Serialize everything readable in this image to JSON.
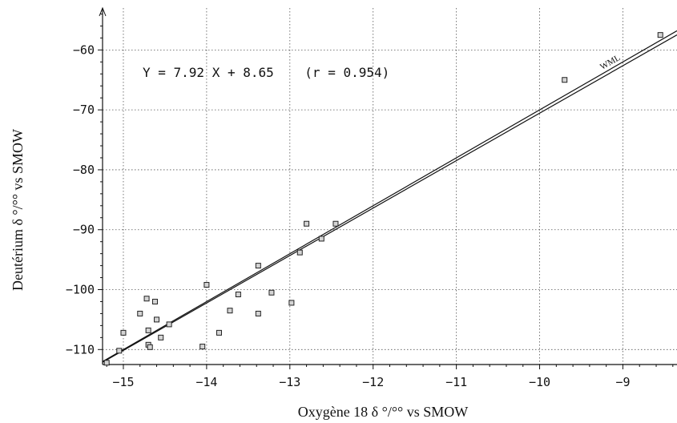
{
  "chart_data": {
    "type": "scatter",
    "xlabel": "Oxygène 18 δ °/°° vs SMOW",
    "ylabel": "Deutérium δ °/°° vs SMOW",
    "xlim": [
      -15.25,
      -8.35
    ],
    "ylim": [
      -112.5,
      -53
    ],
    "xticks": [
      -15,
      -14,
      -13,
      -12,
      -11,
      -10,
      -9
    ],
    "yticks": [
      -110,
      -100,
      -90,
      -80,
      -70,
      -60
    ],
    "xtick_labels": [
      "−15",
      "−14",
      "−13",
      "−12",
      "−11",
      "−10",
      "−9"
    ],
    "ytick_labels": [
      "−110",
      "−100",
      "−90",
      "−80",
      "−70",
      "−60"
    ],
    "grid": true,
    "annotation": "Y = 7.92 X + 8.65    (r = 0.954)",
    "lines": [
      {
        "name": "WML",
        "slope": 8,
        "intercept": 10,
        "label": "WML"
      },
      {
        "slope": 7.92,
        "intercept": 8.65
      }
    ],
    "series": [
      {
        "points": [
          [
            -15.2,
            -112.2
          ],
          [
            -15.05,
            -110.2
          ],
          [
            -15.0,
            -107.2
          ],
          [
            -14.8,
            -104.0
          ],
          [
            -14.72,
            -101.5
          ],
          [
            -14.7,
            -106.8
          ],
          [
            -14.7,
            -109.2
          ],
          [
            -14.68,
            -109.6
          ],
          [
            -14.62,
            -102.0
          ],
          [
            -14.6,
            -105.0
          ],
          [
            -14.55,
            -108.0
          ],
          [
            -14.45,
            -105.8
          ],
          [
            -14.05,
            -109.5
          ],
          [
            -14.0,
            -99.2
          ],
          [
            -13.85,
            -107.2
          ],
          [
            -13.72,
            -103.5
          ],
          [
            -13.62,
            -100.8
          ],
          [
            -13.38,
            -96.0
          ],
          [
            -13.38,
            -104.0
          ],
          [
            -13.22,
            -100.5
          ],
          [
            -12.98,
            -102.2
          ],
          [
            -12.88,
            -93.8
          ],
          [
            -12.8,
            -89.0
          ],
          [
            -12.62,
            -91.5
          ],
          [
            -12.45,
            -89.0
          ],
          [
            -9.7,
            -65.0
          ],
          [
            -8.55,
            -57.5
          ]
        ]
      }
    ]
  }
}
